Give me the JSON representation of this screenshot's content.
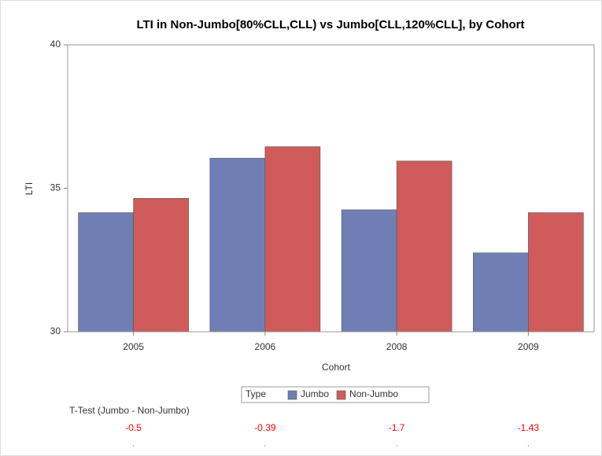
{
  "chart_data": {
    "type": "bar",
    "title": "LTI in Non-Jumbo[80%CLL,CLL) vs Jumbo[CLL,120%CLL], by Cohort",
    "x_label": "Cohort",
    "y_label": "LTI",
    "categories": [
      "2005",
      "2006",
      "2008",
      "2009"
    ],
    "series": [
      {
        "name": "Jumbo",
        "color": "#6f7fb5",
        "values": [
          34.15,
          36.05,
          34.25,
          32.75
        ]
      },
      {
        "name": "Non-Jumbo",
        "color": "#d05b5b",
        "values": [
          34.65,
          36.45,
          35.95,
          34.15
        ]
      }
    ],
    "ylim": [
      30,
      40
    ],
    "yticks": [
      30,
      35,
      40
    ],
    "legend_title": "Type",
    "ttest": {
      "label": "T-Test (Jumbo - Non-Jumbo)",
      "values": [
        -0.5,
        -0.39,
        -1.7,
        -1.43
      ],
      "color": "#ff0000"
    }
  }
}
